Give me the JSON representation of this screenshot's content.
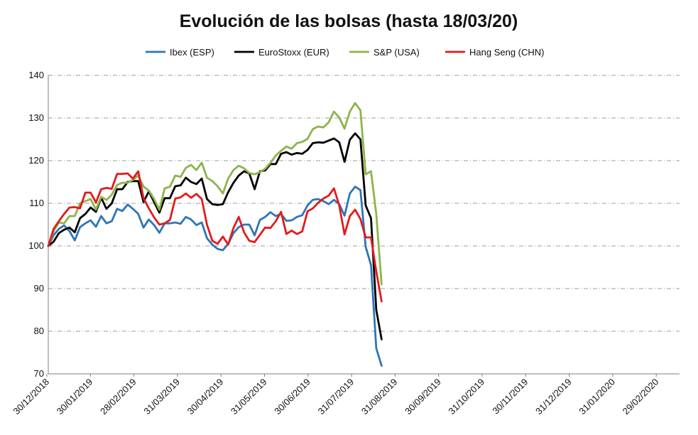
{
  "chart_data": {
    "type": "line",
    "title": "Evolución de las bolsas (hasta 18/03/20)",
    "xlabel": "",
    "ylabel": "",
    "ylim": [
      70,
      140
    ],
    "yticks": [
      70,
      80,
      90,
      100,
      110,
      120,
      130,
      140
    ],
    "grid": true,
    "legend_position": "top",
    "x_labels": [
      "30/12/2018",
      "30/01/2019",
      "28/02/2019",
      "31/03/2019",
      "30/04/2019",
      "31/05/2019",
      "30/06/2019",
      "31/07/2019",
      "31/08/2019",
      "30/09/2019",
      "31/10/2019",
      "30/11/2019",
      "31/12/2019",
      "31/01/2020",
      "29/02/2020"
    ],
    "series": [
      {
        "name": "Ibex (ESP)",
        "color": "#2e75b6",
        "values": [
          100,
          102.5,
          104,
          104.8,
          103.5,
          101.3,
          104.4,
          105.3,
          106,
          104.5,
          107,
          105.3,
          105.8,
          108.7,
          108.2,
          109.7,
          108.7,
          107.5,
          104.3,
          106.2,
          104.9,
          103.1,
          105.3,
          105.3,
          105.5,
          105.2,
          106.8,
          106.2,
          104.9,
          105.5,
          101.8,
          100.3,
          99.3,
          99.0,
          100.5,
          103,
          104.4,
          105,
          105,
          102.5,
          106.1,
          106.8,
          107.9,
          107,
          107.5,
          105.9,
          106,
          106.8,
          107.2,
          109.5,
          110.8,
          111,
          110.5,
          109.8,
          110.8,
          109.8,
          107.1,
          112.3,
          113.9,
          113.1,
          99.8,
          95.5,
          76,
          71.9
        ]
      },
      {
        "name": "EuroStoxx (EUR)",
        "color": "#000000",
        "values": [
          100,
          101,
          103,
          103.8,
          104.3,
          103.2,
          106.5,
          107.5,
          109,
          108,
          111.3,
          108.7,
          110,
          113.3,
          113.3,
          115,
          115.2,
          115.2,
          110.3,
          112.8,
          110.3,
          107.8,
          111.2,
          111.2,
          114,
          114.2,
          116,
          115,
          114.5,
          115.8,
          111,
          109.8,
          109.6,
          109.8,
          112.6,
          114.8,
          116.5,
          117.5,
          117,
          113.3,
          117.5,
          117.7,
          119.2,
          119.2,
          121.6,
          122,
          121.4,
          121.8,
          121.6,
          122.5,
          124.1,
          124.3,
          124.2,
          124.7,
          125.2,
          124.3,
          119.7,
          124.9,
          126.4,
          125,
          109.5,
          106.5,
          85,
          78.1
        ]
      },
      {
        "name": "S&P (USA)",
        "color": "#8db44b",
        "values": [
          100,
          103.5,
          105.5,
          105.3,
          107,
          107,
          110,
          110.5,
          111,
          108.5,
          111.5,
          110.8,
          112,
          114.3,
          114.8,
          114.8,
          115.5,
          116.5,
          113.9,
          113,
          111,
          108.5,
          113.5,
          113.9,
          116.5,
          116.2,
          118.3,
          119,
          117.8,
          119.5,
          116,
          115.2,
          114,
          112.3,
          115.8,
          117.8,
          118.8,
          118.2,
          117.1,
          116.8,
          117.3,
          118.1,
          119.5,
          121.2,
          122.3,
          123.3,
          122.8,
          124.1,
          124.4,
          125.1,
          127.4,
          128,
          127.8,
          129,
          131.5,
          130.1,
          127.5,
          131.5,
          133.5,
          131.8,
          116.8,
          117.5,
          107.5,
          91
        ]
      },
      {
        "name": "Hang Seng (CHN)",
        "color": "#e31a1c",
        "values": [
          100,
          104,
          105.8,
          107.5,
          109,
          109.1,
          108.8,
          112.5,
          112.5,
          110.2,
          113.3,
          113.6,
          113.4,
          116.9,
          116.9,
          117,
          115.8,
          117.5,
          111.2,
          108.8,
          106.7,
          105,
          105.3,
          106.1,
          111.1,
          111.4,
          112.3,
          111.3,
          112.2,
          111,
          105,
          101.2,
          100.5,
          102.2,
          100.3,
          104.2,
          106.8,
          103.2,
          101.2,
          100.9,
          102.6,
          104.3,
          104.2,
          105.8,
          108.0,
          102.8,
          103.6,
          102.8,
          103.4,
          108.1,
          108.8,
          110.1,
          111.1,
          111.8,
          113.5,
          109.5,
          102.7,
          107,
          108.5,
          106.3,
          102,
          102,
          94,
          87
        ]
      }
    ]
  }
}
